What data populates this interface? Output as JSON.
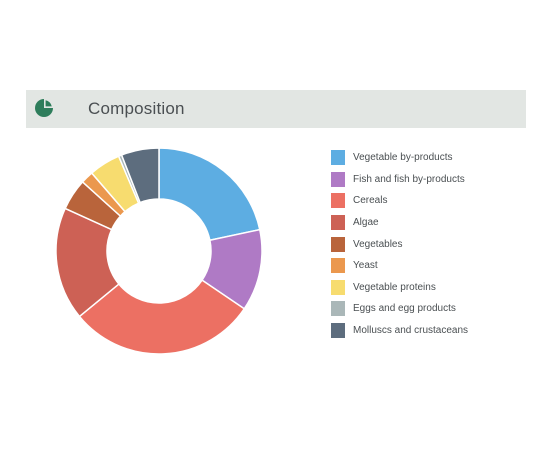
{
  "header": {
    "title": "Composition",
    "icon": "pie-chart-icon",
    "icon_color": "#2e7d5b"
  },
  "chart_data": {
    "type": "pie",
    "donut": true,
    "legend_position": "right",
    "series": [
      {
        "name": "Vegetable by-products",
        "value": 22,
        "color": "#5dade2"
      },
      {
        "name": "Fish and fish by-products",
        "value": 13,
        "color": "#af7ac5"
      },
      {
        "name": "Cereals",
        "value": 30,
        "color": "#ec7063"
      },
      {
        "name": "Algae",
        "value": 18,
        "color": "#cd6155"
      },
      {
        "name": "Vegetables",
        "value": 5,
        "color": "#b9643b"
      },
      {
        "name": "Yeast",
        "value": 2,
        "color": "#eb984e"
      },
      {
        "name": "Vegetable proteins",
        "value": 5,
        "color": "#f7dc6f"
      },
      {
        "name": "Eggs and egg products",
        "value": 0.5,
        "color": "#aab7b8"
      },
      {
        "name": "Molluscs and crustaceans",
        "value": 6,
        "color": "#5d6d7e"
      }
    ]
  }
}
